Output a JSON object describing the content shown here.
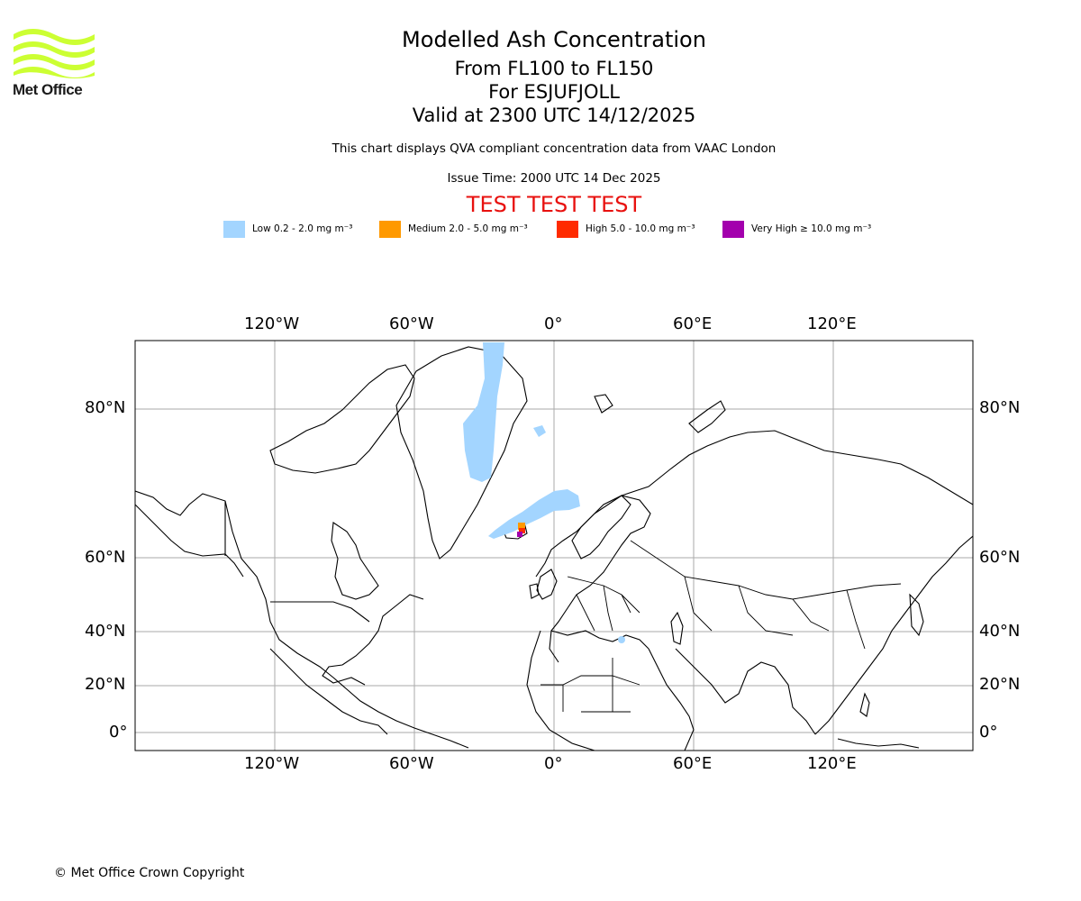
{
  "logo": {
    "text": "Met Office",
    "color": "#ccff33"
  },
  "header": {
    "title": "Modelled Ash Concentration",
    "levels": "From FL100 to FL150",
    "volcano": "For ESJUFJOLL",
    "valid": "Valid at 2300 UTC 14/12/2025",
    "description": "This chart displays QVA compliant concentration data from VAAC London",
    "issue_time": "Issue Time: 2000 UTC 14 Dec 2025",
    "test_banner": "TEST TEST TEST"
  },
  "legend": [
    {
      "label": "Low 0.2 - 2.0 mg m⁻³",
      "color": "#a3d5ff"
    },
    {
      "label": "Medium 2.0 - 5.0 mg m⁻³",
      "color": "#ff9900"
    },
    {
      "label": "High 5.0 - 10.0 mg m⁻³",
      "color": "#ff2b00"
    },
    {
      "label": "Very High ≥ 10.0 mg m⁻³",
      "color": "#a300ad"
    }
  ],
  "map": {
    "projection": "Mercator",
    "longitude_ticks": [
      "120°W",
      "60°W",
      "0°",
      "60°E",
      "120°E"
    ],
    "latitude_ticks": [
      "80°N",
      "60°N",
      "40°N",
      "20°N",
      "0°"
    ],
    "grid": true,
    "gridline_color": "#aaaaaa"
  },
  "footer": {
    "copyright": "© Met Office Crown Copyright"
  }
}
